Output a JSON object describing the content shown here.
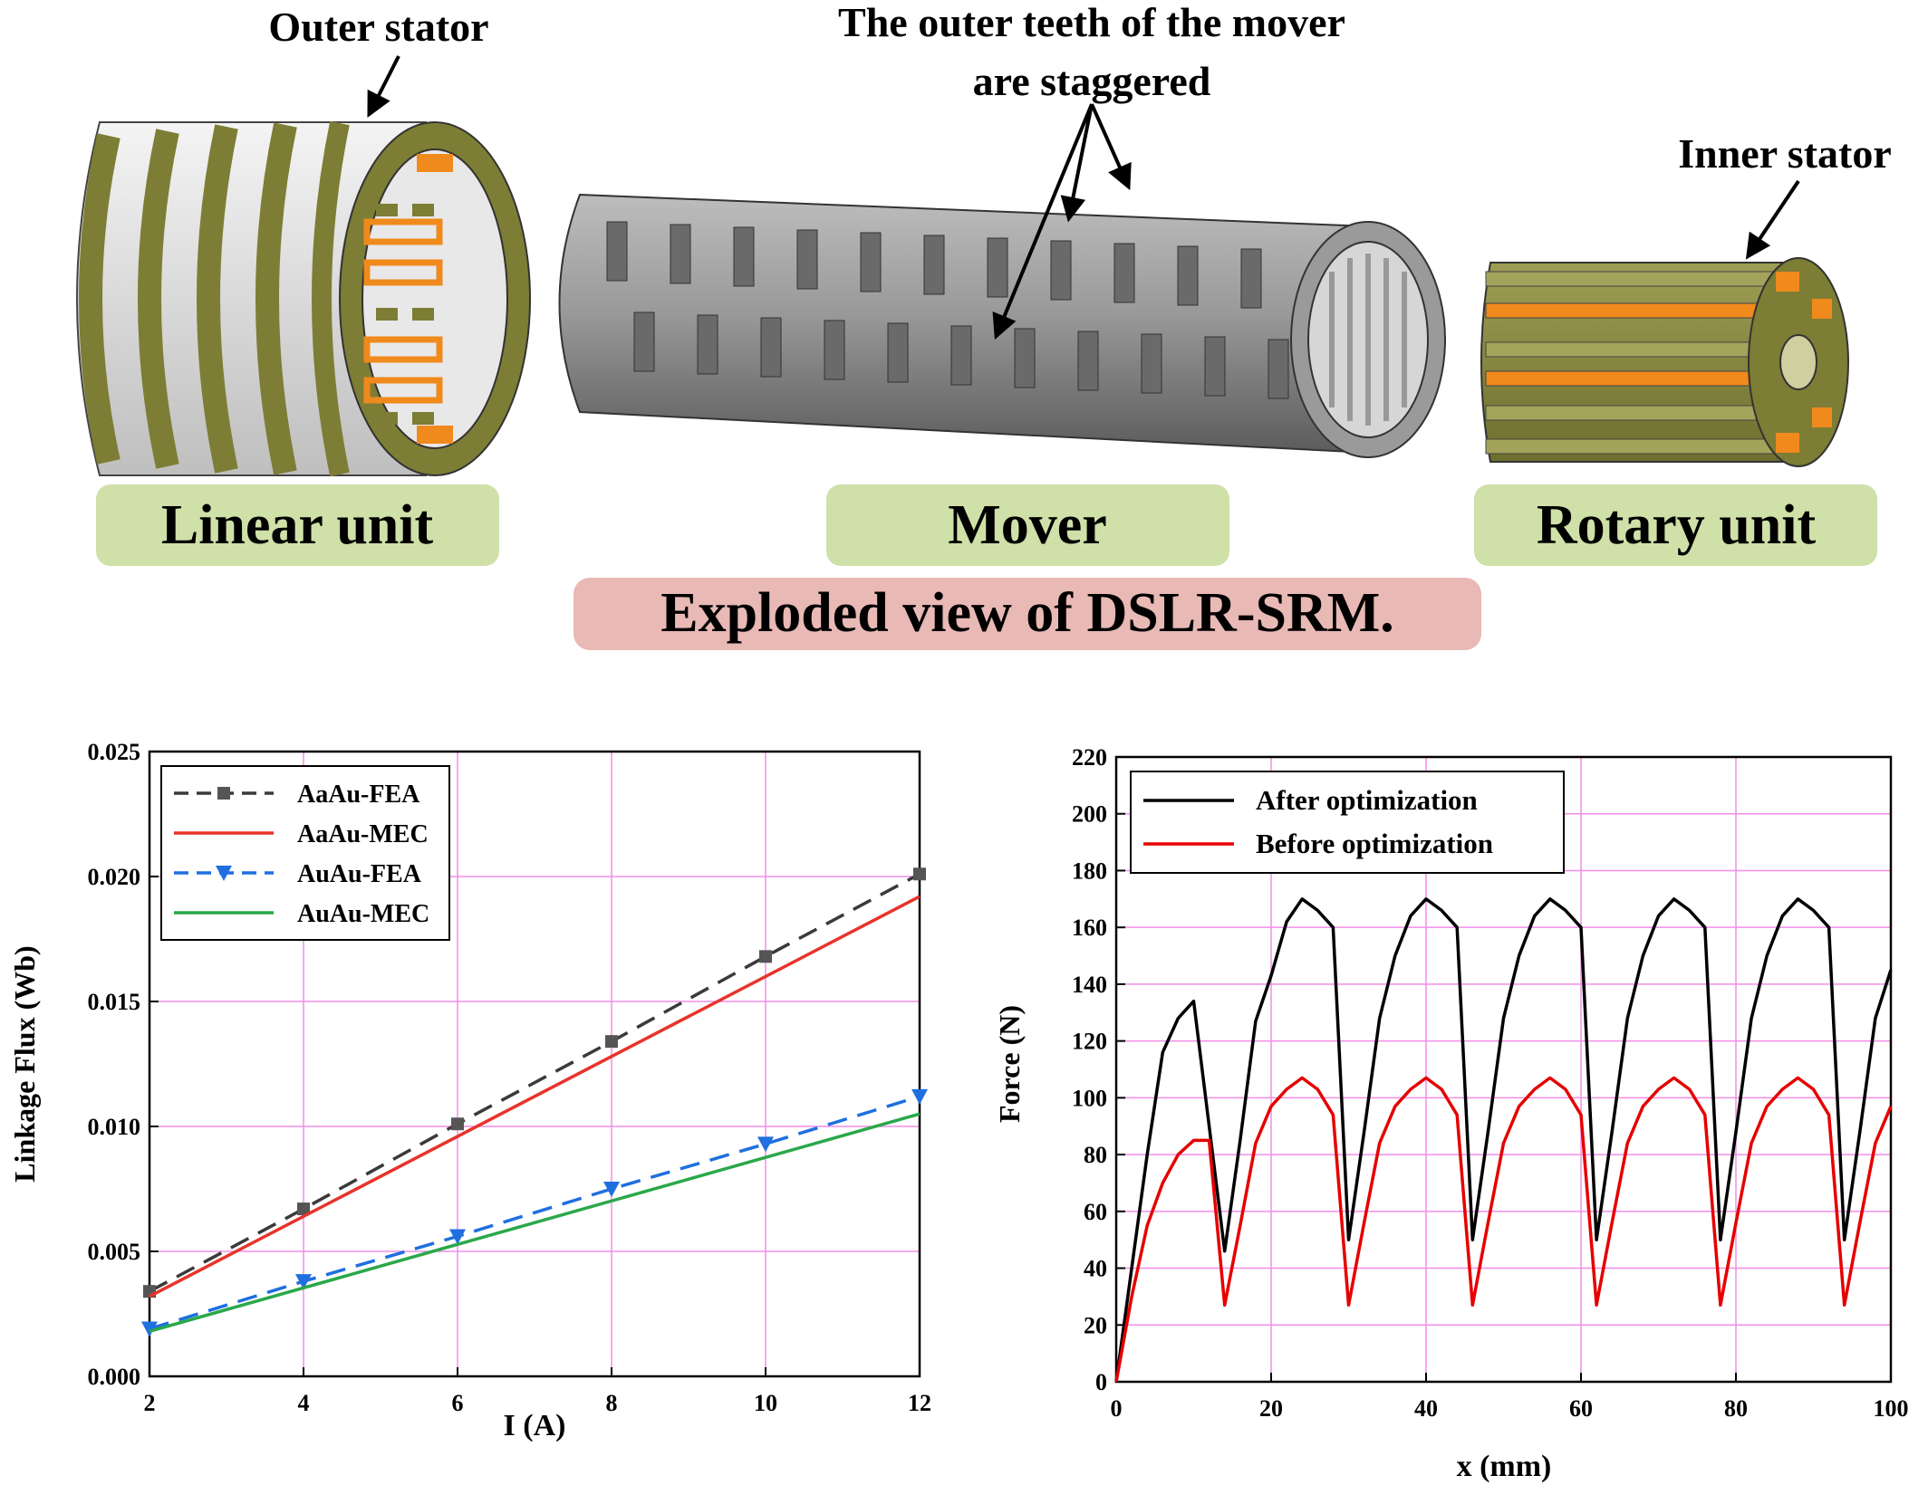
{
  "diagram": {
    "callouts": {
      "outer_stator": "Outer stator",
      "outer_teeth_line1": "The outer teeth of the mover",
      "outer_teeth_line2": "are staggered",
      "inner_stator": "Inner stator"
    },
    "labels": {
      "linear_unit": "Linear unit",
      "mover": "Mover",
      "rotary_unit": "Rotary unit",
      "caption": "Exploded view of DSLR-SRM."
    },
    "colors": {
      "label_green": "#cfe0a8",
      "caption_pink": "#e8b9b5",
      "stator_olive": "#8a8a3e",
      "coil_orange": "#f08a1c",
      "mover_gray": "#8c8c8c"
    }
  },
  "chart_data": [
    {
      "type": "line",
      "xlabel": "I (A)",
      "ylabel": "Linkage Flux (Wb)",
      "xlim": [
        2,
        12
      ],
      "ylim": [
        0.0,
        0.025
      ],
      "xticks": [
        "2",
        "4",
        "6",
        "8",
        "10",
        "12"
      ],
      "yticks": [
        "0.000",
        "0.005",
        "0.010",
        "0.015",
        "0.020",
        "0.025"
      ],
      "grid": true,
      "legend_position": "top-left",
      "series": [
        {
          "name": "AaAu-FEA",
          "color": "#3a3a3a",
          "dash": "dashed",
          "marker": "square",
          "x": [
            2,
            4,
            6,
            8,
            10,
            12
          ],
          "y": [
            0.0034,
            0.0067,
            0.0101,
            0.0134,
            0.0168,
            0.0201
          ]
        },
        {
          "name": "AaAu-MEC",
          "color": "#e8332a",
          "dash": "solid",
          "marker": "none",
          "x": [
            2,
            12
          ],
          "y": [
            0.0032,
            0.0192
          ]
        },
        {
          "name": "AuAu-FEA",
          "color": "#1f6fe0",
          "dash": "dashed",
          "marker": "triangle-down",
          "x": [
            2,
            4,
            6,
            8,
            10,
            12
          ],
          "y": [
            0.0019,
            0.0038,
            0.0056,
            0.0075,
            0.0093,
            0.0112
          ]
        },
        {
          "name": "AuAu-MEC",
          "color": "#2aa84a",
          "dash": "solid",
          "marker": "none",
          "x": [
            2,
            12
          ],
          "y": [
            0.0018,
            0.0105
          ]
        }
      ]
    },
    {
      "type": "line",
      "xlabel": "x (mm)",
      "ylabel": "Force (N)",
      "xlim": [
        0,
        100
      ],
      "ylim": [
        0,
        220
      ],
      "xticks": [
        "0",
        "20",
        "40",
        "60",
        "80",
        "100"
      ],
      "yticks": [
        "0",
        "20",
        "40",
        "60",
        "80",
        "100",
        "120",
        "140",
        "160",
        "180",
        "200",
        "220"
      ],
      "grid": true,
      "legend_position": "top-left",
      "series": [
        {
          "name": "After optimization",
          "color": "#000000",
          "x": [
            0,
            2,
            4,
            6,
            8,
            10,
            12,
            14,
            16,
            18,
            20,
            22,
            24,
            26,
            28,
            30,
            32,
            34,
            36,
            38,
            40,
            42,
            44,
            46,
            48,
            50,
            52,
            54,
            56,
            58,
            60,
            62,
            64,
            66,
            68,
            70,
            72,
            74,
            76,
            78,
            80,
            82,
            84,
            86,
            88,
            90,
            92,
            94,
            96,
            98,
            100
          ],
          "y": [
            0,
            40,
            80,
            116,
            128,
            134,
            90,
            46,
            85,
            127,
            143,
            162,
            170,
            166,
            160,
            50,
            88,
            128,
            150,
            164,
            170,
            166,
            160,
            50,
            88,
            128,
            150,
            164,
            170,
            166,
            160,
            50,
            88,
            128,
            150,
            164,
            170,
            166,
            160,
            50,
            88,
            128,
            150,
            164,
            170,
            166,
            160,
            50,
            88,
            128,
            145
          ]
        },
        {
          "name": "Before optimization",
          "color": "#e60000",
          "x": [
            0,
            2,
            4,
            6,
            8,
            10,
            12,
            14,
            16,
            18,
            20,
            22,
            24,
            26,
            28,
            30,
            32,
            34,
            36,
            38,
            40,
            42,
            44,
            46,
            48,
            50,
            52,
            54,
            56,
            58,
            60,
            62,
            64,
            66,
            68,
            70,
            72,
            74,
            76,
            78,
            80,
            82,
            84,
            86,
            88,
            90,
            92,
            94,
            96,
            98,
            100
          ],
          "y": [
            0,
            30,
            55,
            70,
            80,
            85,
            85,
            27,
            55,
            84,
            97,
            103,
            107,
            103,
            94,
            27,
            56,
            84,
            97,
            103,
            107,
            103,
            94,
            27,
            56,
            84,
            97,
            103,
            107,
            103,
            94,
            27,
            56,
            84,
            97,
            103,
            107,
            103,
            94,
            27,
            56,
            84,
            97,
            103,
            107,
            103,
            94,
            27,
            56,
            84,
            97
          ]
        }
      ]
    }
  ]
}
